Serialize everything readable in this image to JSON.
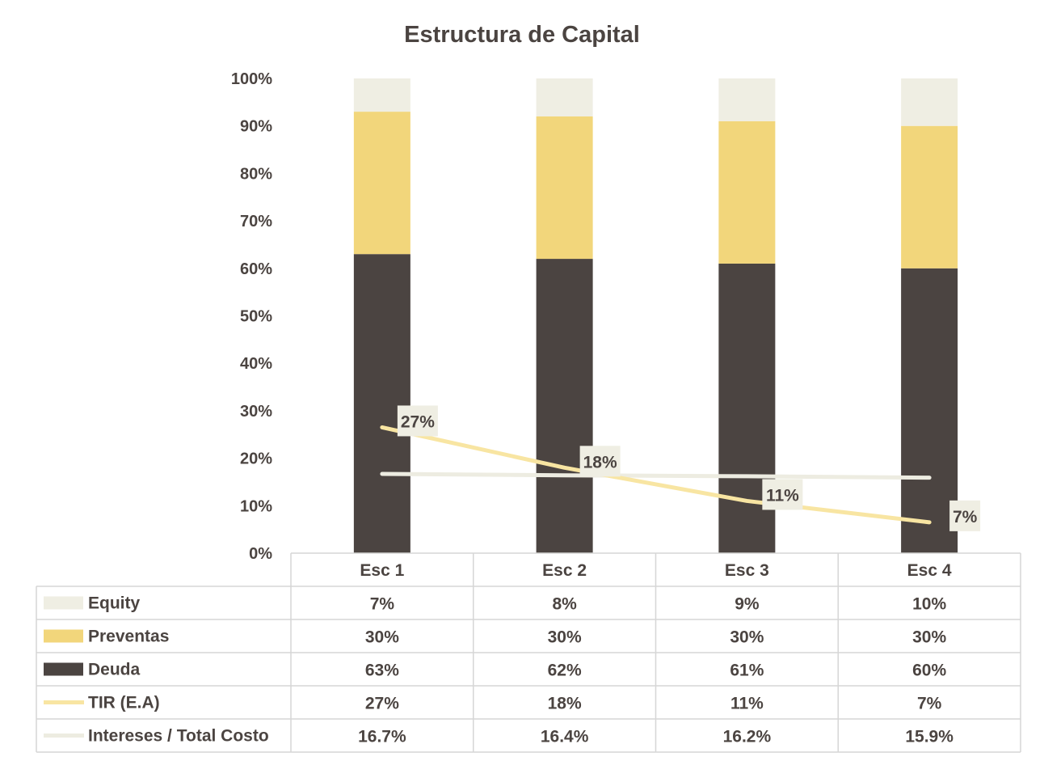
{
  "chart_data": {
    "type": "bar",
    "stacked": true,
    "title": "Estructura de Capital",
    "categories": [
      "Esc 1",
      "Esc 2",
      "Esc 3",
      "Esc 4"
    ],
    "ylim": [
      0,
      1
    ],
    "yticks": [
      "0%",
      "10%",
      "20%",
      "30%",
      "40%",
      "50%",
      "60%",
      "70%",
      "80%",
      "90%",
      "100%"
    ],
    "bar_series": [
      {
        "name": "Deuda",
        "values": [
          0.63,
          0.62,
          0.61,
          0.6
        ],
        "labels": [
          "63%",
          "62%",
          "61%",
          "60%"
        ],
        "color": "#4b4441"
      },
      {
        "name": "Preventas",
        "values": [
          0.3,
          0.3,
          0.3,
          0.3
        ],
        "labels": [
          "30%",
          "30%",
          "30%",
          "30%"
        ],
        "color": "#f2d67b"
      },
      {
        "name": "Equity",
        "values": [
          0.07,
          0.08,
          0.09,
          0.1
        ],
        "labels": [
          "7%",
          "8%",
          "9%",
          "10%"
        ],
        "color": "#efeee3"
      }
    ],
    "line_series": [
      {
        "name": "TIR (E.A)",
        "values": [
          0.265,
          0.18,
          0.11,
          0.065
        ],
        "labels": [
          "27%",
          "18%",
          "11%",
          "7%"
        ],
        "color": "#f8e5a2",
        "show_data_labels": true
      },
      {
        "name": "Intereses / Total Costo",
        "values": [
          0.167,
          0.164,
          0.162,
          0.159
        ],
        "labels": [
          "16.7%",
          "16.4%",
          "16.2%",
          "15.9%"
        ],
        "color": "#edece1",
        "show_data_labels": false
      }
    ],
    "table_row_order": [
      "Equity",
      "Preventas",
      "Deuda",
      "TIR (E.A)",
      "Intereses / Total Costo"
    ],
    "grid": false,
    "legend": "data-table"
  }
}
